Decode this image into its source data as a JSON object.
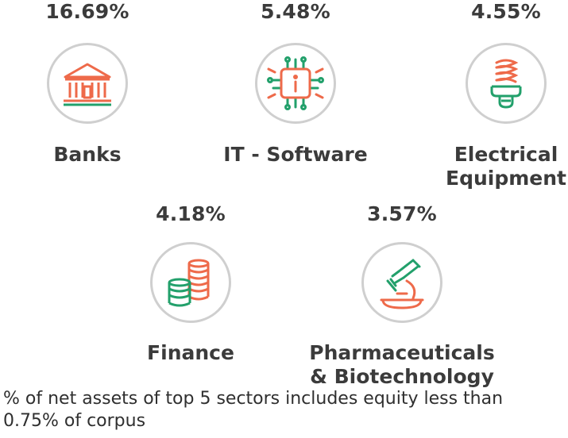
{
  "chart_data": {
    "type": "icon-stat",
    "unit": "% of net assets",
    "categories": [
      "Banks",
      "IT - Software",
      "Electrical Equipment",
      "Finance",
      "Pharmaceuticals & Biotechnology"
    ],
    "values": [
      16.69,
      5.48,
      4.55,
      4.18,
      3.57
    ],
    "series": [
      {
        "values": [
          16.69,
          5.48,
          4.55,
          4.18,
          3.57
        ]
      }
    ]
  },
  "sectors": [
    {
      "pct": "16.69%",
      "name": "Banks",
      "icon": "bank-icon"
    },
    {
      "pct": "5.48%",
      "name": "IT - Software",
      "icon": "chip-icon"
    },
    {
      "pct": "4.55%",
      "name_line1": "Electrical",
      "name_line2": "Equipment",
      "icon": "bulb-icon"
    },
    {
      "pct": "4.18%",
      "name": "Finance",
      "icon": "coins-icon"
    },
    {
      "pct": "3.57%",
      "name_line1": "Pharmaceuticals",
      "name_line2": "& Biotechnology",
      "icon": "microscope-icon"
    }
  ],
  "footnote_line1": "% of net assets of top 5 sectors includes equity less than",
  "footnote_line2": "0.75% of corpus",
  "colors": {
    "accent_orange": "#ee6a4a",
    "accent_green": "#22a06b",
    "circle_border": "#cfcfcf",
    "text": "#3b3b3b"
  }
}
